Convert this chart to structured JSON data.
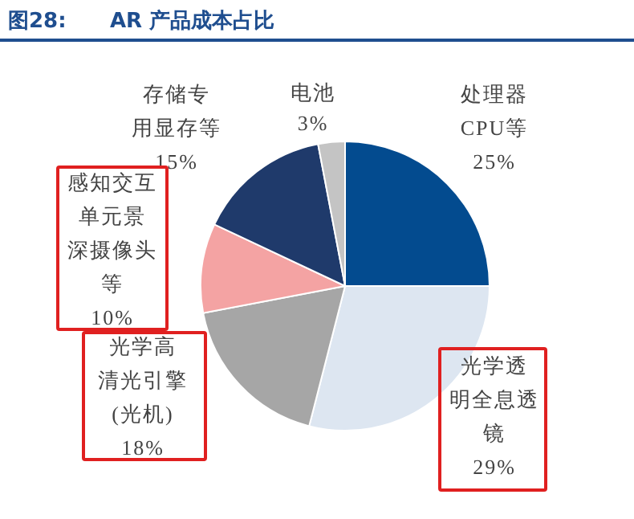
{
  "chart_data": {
    "type": "pie",
    "title": "图28:      AR 产品成本占比",
    "categories": [
      "处理器CPU等",
      "光学透明全息透镜",
      "光学高清光引擎(光机)",
      "感知交互单元景深摄像头等",
      "存储专用显存等",
      "电池"
    ],
    "values": [
      25,
      29,
      18,
      10,
      15,
      3
    ],
    "value_labels": [
      "25%",
      "29%",
      "18%",
      "10%",
      "15%",
      "3%"
    ],
    "colors": [
      "#034b8f",
      "#dde6f1",
      "#a6a6a6",
      "#f4a3a3",
      "#1f3a6b",
      "#c4c4c4"
    ],
    "legend": false
  }
}
